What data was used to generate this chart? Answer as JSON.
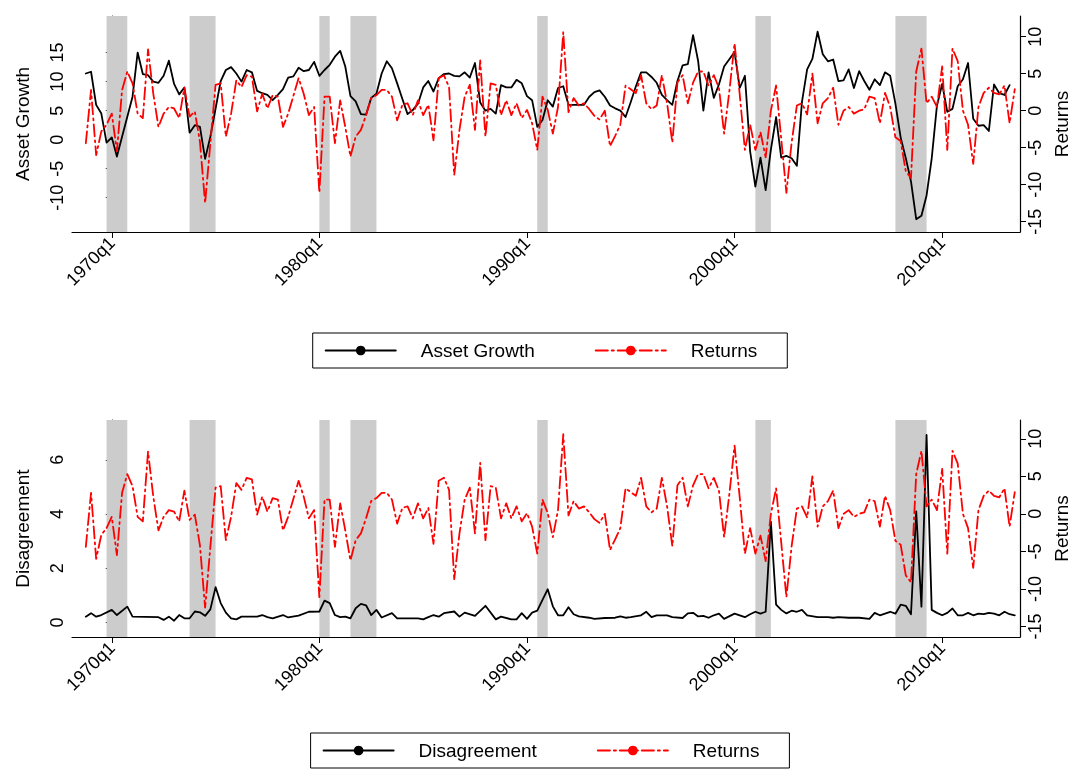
{
  "chart_data": [
    {
      "type": "line",
      "ylabel": "Asset Growth",
      "y2label": "Returns",
      "xlim": [
        "1968-02",
        "2013-10"
      ],
      "xticks": [
        {
          "value": "1970-01",
          "label": "1970q1"
        },
        {
          "value": "1980-01",
          "label": "1980q1"
        },
        {
          "value": "1990-01",
          "label": "1990q1"
        },
        {
          "value": "2000-01",
          "label": "2000q1"
        },
        {
          "value": "2010-01",
          "label": "2010q1"
        }
      ],
      "ylim": [
        -15.9,
        21.3
      ],
      "yticks": [
        -10,
        -5,
        0,
        5,
        10,
        15
      ],
      "y2lim": [
        -16.4,
        12.8
      ],
      "y2ticks": [
        -15,
        -10,
        -5,
        0,
        5,
        10
      ],
      "legend": "bottom",
      "grid": false,
      "marker": "none",
      "bands": [
        {
          "axis": "x",
          "from": "1969-10",
          "to": "1970-10",
          "color": "#cccccc"
        },
        {
          "axis": "x",
          "from": "1973-10",
          "to": "1975-01",
          "color": "#cccccc"
        },
        {
          "axis": "x",
          "from": "1980-01",
          "to": "1980-07",
          "color": "#cccccc"
        },
        {
          "axis": "x",
          "from": "1981-07",
          "to": "1982-10",
          "color": "#cccccc"
        },
        {
          "axis": "x",
          "from": "1990-07",
          "to": "1991-01",
          "color": "#cccccc"
        },
        {
          "axis": "x",
          "from": "2001-01",
          "to": "2001-10",
          "color": "#cccccc"
        },
        {
          "axis": "x",
          "from": "2007-10",
          "to": "2009-04",
          "color": "#cccccc"
        }
      ],
      "series": [
        {
          "name": "Asset Growth",
          "color": "#000000",
          "line_style": "solid",
          "x": [
            "1968-10",
            "1969-01",
            "1969-04",
            "1969-07",
            "1969-10",
            "1970-01",
            "1970-04",
            "1971-01",
            "1971-04",
            "1971-07",
            "1971-10",
            "1972-01",
            "1972-04",
            "1972-07",
            "1972-10",
            "1973-01",
            "1973-04",
            "1973-07",
            "1973-10",
            "1974-01",
            "1974-04",
            "1974-07",
            "1974-10",
            "1975-04",
            "1975-07",
            "1975-10",
            "1976-01",
            "1976-04",
            "1976-07",
            "1976-10",
            "1977-01",
            "1977-04",
            "1977-07",
            "1977-10",
            "1978-01",
            "1978-04",
            "1978-07",
            "1978-10",
            "1979-01",
            "1979-04",
            "1979-07",
            "1979-10",
            "1980-01",
            "1980-04",
            "1980-07",
            "1980-10",
            "1981-01",
            "1981-04",
            "1981-07",
            "1981-10",
            "1982-01",
            "1982-04",
            "1982-07",
            "1982-10",
            "1983-01",
            "1983-04",
            "1983-07",
            "1983-10",
            "1984-01",
            "1984-04",
            "1984-07",
            "1984-10",
            "1985-01",
            "1985-04",
            "1985-07",
            "1985-10",
            "1986-01",
            "1986-04",
            "1986-07",
            "1986-10",
            "1987-01",
            "1987-04",
            "1987-07",
            "1987-10",
            "1988-01",
            "1988-04",
            "1988-07",
            "1988-10",
            "1989-01",
            "1989-04",
            "1989-07",
            "1989-10",
            "1990-01",
            "1990-04",
            "1990-07",
            "1990-10",
            "1991-01",
            "1991-04",
            "1991-07",
            "1991-10",
            "1992-01",
            "1992-04",
            "1992-10",
            "1993-01",
            "1993-04",
            "1993-07",
            "1993-10",
            "1994-01",
            "1994-04",
            "1994-07",
            "1994-10",
            "1995-01",
            "1995-04",
            "1995-07",
            "1995-10",
            "1996-01",
            "1996-04",
            "1996-07",
            "1996-10",
            "1997-01",
            "1997-04",
            "1997-07",
            "1997-10",
            "1998-01",
            "1998-04",
            "1998-07",
            "1998-10",
            "1999-01",
            "1999-04",
            "1999-07",
            "2000-01",
            "2000-04",
            "2000-07",
            "2000-10",
            "2001-01",
            "2001-04",
            "2001-07",
            "2001-10",
            "2002-01",
            "2002-04",
            "2002-07",
            "2002-10",
            "2003-01",
            "2003-04",
            "2003-07",
            "2003-10",
            "2004-01",
            "2004-04",
            "2004-07",
            "2004-10",
            "2005-01",
            "2005-04",
            "2005-07",
            "2005-10",
            "2006-01",
            "2006-04",
            "2006-07",
            "2006-10",
            "2007-01",
            "2007-04",
            "2007-07",
            "2007-10",
            "2008-01",
            "2008-04",
            "2008-07",
            "2008-10",
            "2009-01",
            "2009-04",
            "2009-07",
            "2009-10",
            "2010-01",
            "2010-04",
            "2010-07",
            "2010-10",
            "2011-01",
            "2011-04",
            "2011-07",
            "2011-10",
            "2012-01",
            "2012-04",
            "2012-07",
            "2012-10",
            "2013-01",
            "2013-04"
          ],
          "values": [
            11.4,
            11.7,
            6.0,
            4.5,
            -0.5,
            0.4,
            -2.9,
            7.4,
            15.0,
            11.3,
            11.1,
            10.0,
            9.8,
            11.0,
            13.6,
            9.6,
            7.8,
            9.0,
            1.2,
            2.5,
            2.2,
            -3.3,
            0.5,
            10.1,
            12.0,
            12.5,
            11.4,
            10.0,
            12.0,
            11.6,
            8.4,
            8.0,
            7.7,
            6.8,
            7.7,
            8.7,
            10.7,
            10.9,
            12.4,
            11.8,
            12.0,
            13.4,
            11.0,
            12.0,
            12.9,
            14.3,
            15.3,
            12.6,
            7.5,
            6.6,
            4.4,
            4.3,
            7.2,
            7.9,
            11.4,
            13.5,
            12.3,
            9.7,
            7.0,
            4.4,
            5.1,
            6.2,
            9.0,
            10.1,
            8.3,
            10.6,
            11.3,
            11.4,
            11.0,
            10.9,
            11.6,
            10.7,
            13.2,
            6.4,
            5.0,
            5.3,
            4.5,
            9.4,
            9.0,
            9.0,
            10.3,
            9.7,
            7.5,
            6.8,
            2.2,
            3.4,
            6.8,
            5.7,
            8.9,
            9.2,
            6.0,
            6.0,
            6.0,
            7.4,
            8.2,
            8.5,
            7.4,
            5.9,
            5.4,
            5.0,
            3.9,
            6.5,
            9.2,
            11.6,
            11.6,
            10.8,
            9.8,
            7.7,
            6.8,
            6.0,
            10.1,
            12.8,
            13.0,
            18.0,
            13.5,
            5.0,
            11.6,
            7.2,
            9.5,
            12.6,
            15.1,
            8.9,
            11.0,
            -2.0,
            -8.1,
            -3.1,
            -8.7,
            -1.7,
            3.9,
            -3.1,
            -2.8,
            -3.2,
            -4.5,
            6.5,
            12.1,
            13.9,
            18.6,
            14.7,
            13.5,
            13.8,
            10.1,
            10.2,
            12.1,
            8.9,
            11.8,
            10.1,
            8.6,
            10.4,
            9.4,
            11.6,
            11.0,
            6.2,
            0.4,
            -3.2,
            -7.2,
            -13.7,
            -13.1,
            -9.6,
            -3.2,
            5.9,
            9.6,
            4.8,
            5.3,
            9.2,
            10.4,
            13.2,
            3.6,
            2.4,
            2.5,
            1.5,
            9.5,
            8.0,
            7.7,
            9.4
          ]
        },
        {
          "name": "Returns",
          "color": "#ff0000",
          "line_style": "dashed",
          "axis": "y2",
          "x": [
            "1968-10",
            "1969-01",
            "1969-04",
            "1969-07",
            "1969-10",
            "1970-01",
            "1970-04",
            "1970-07",
            "1970-10",
            "1971-01",
            "1971-04",
            "1971-07",
            "1971-10",
            "1972-01",
            "1972-04",
            "1972-07",
            "1972-10",
            "1973-01",
            "1973-04",
            "1973-07",
            "1973-10",
            "1974-01",
            "1974-04",
            "1974-07",
            "1974-10",
            "1975-01",
            "1975-04",
            "1975-07",
            "1975-10",
            "1976-01",
            "1976-04",
            "1976-07",
            "1976-10",
            "1977-01",
            "1977-04",
            "1977-07",
            "1977-10",
            "1978-01",
            "1978-04",
            "1978-07",
            "1979-01",
            "1979-04",
            "1979-07",
            "1979-10",
            "1980-01",
            "1980-04",
            "1980-07",
            "1980-10",
            "1981-01",
            "1981-04",
            "1981-07",
            "1981-10",
            "1982-01",
            "1982-04",
            "1982-07",
            "1982-10",
            "1983-01",
            "1983-04",
            "1983-07",
            "1983-10",
            "1984-01",
            "1984-04",
            "1984-07",
            "1984-10",
            "1985-01",
            "1985-04",
            "1985-07",
            "1985-10",
            "1986-01",
            "1986-04",
            "1986-07",
            "1986-10",
            "1987-01",
            "1987-04",
            "1987-07",
            "1987-10",
            "1988-01",
            "1988-04",
            "1988-07",
            "1988-10",
            "1989-01",
            "1989-04",
            "1989-07",
            "1989-10",
            "1990-01",
            "1990-04",
            "1990-07",
            "1990-10",
            "1991-01",
            "1991-04",
            "1991-07",
            "1991-10",
            "1992-01",
            "1992-04",
            "1992-07",
            "1992-10",
            "1993-01",
            "1993-04",
            "1993-07",
            "1993-10",
            "1994-01",
            "1994-04",
            "1994-07",
            "1994-10",
            "1995-04",
            "1995-07",
            "1995-10",
            "1996-01",
            "1996-04",
            "1996-07",
            "1996-10",
            "1997-01",
            "1997-04",
            "1997-07",
            "1997-10",
            "1998-01",
            "1998-04",
            "1998-07",
            "1998-10",
            "1999-01",
            "1999-04",
            "1999-07",
            "1999-10",
            "2000-01",
            "2000-04",
            "2000-07",
            "2000-10",
            "2001-01",
            "2001-04",
            "2001-07",
            "2001-10",
            "2002-01",
            "2002-04",
            "2002-07",
            "2002-10",
            "2003-01",
            "2003-04",
            "2003-07",
            "2003-10",
            "2004-01",
            "2004-04",
            "2004-07",
            "2004-10",
            "2005-01",
            "2005-04",
            "2005-07",
            "2005-10",
            "2006-01",
            "2006-04",
            "2006-07",
            "2006-10",
            "2007-01",
            "2007-04",
            "2007-07",
            "2007-10",
            "2008-01",
            "2008-04",
            "2008-07",
            "2008-10",
            "2009-01",
            "2009-04",
            "2009-07",
            "2009-10",
            "2010-01",
            "2010-04",
            "2010-07",
            "2010-10",
            "2011-01",
            "2011-04",
            "2011-07",
            "2011-10",
            "2012-01",
            "2012-04",
            "2012-07",
            "2012-10",
            "2013-01",
            "2013-04",
            "2013-07"
          ],
          "values": [
            -4.4,
            2.8,
            -6.0,
            -2.8,
            -1.9,
            -0.4,
            -5.5,
            2.8,
            5.3,
            3.7,
            -0.4,
            -1.0,
            8.3,
            2.3,
            -2.2,
            -0.4,
            0.5,
            0.3,
            -1.0,
            3.1,
            -0.8,
            -0.1,
            -4.2,
            -12.5,
            -4.4,
            3.5,
            3.7,
            -3.5,
            -0.4,
            4.1,
            3.2,
            4.8,
            4.6,
            -0.1,
            2.3,
            0.3,
            2.1,
            1.9,
            -2.2,
            -0.4,
            4.4,
            2.3,
            -0.6,
            0.5,
            -11.1,
            1.9,
            1.9,
            -4.4,
            1.4,
            -2.2,
            -6.2,
            -3.5,
            -2.6,
            -0.6,
            1.7,
            2.1,
            2.8,
            2.8,
            1.9,
            -1.3,
            0.8,
            1.0,
            -0.6,
            1.4,
            -0.6,
            0.8,
            -4.0,
            4.4,
            4.8,
            3.2,
            -8.7,
            -2.6,
            1.9,
            3.5,
            -2.6,
            6.8,
            -3.5,
            3.7,
            3.5,
            -0.6,
            1.4,
            -0.6,
            1.0,
            -1.0,
            0.1,
            -1.7,
            -5.3,
            1.9,
            0.1,
            -3.1,
            0.5,
            10.6,
            -0.2,
            1.7,
            0.7,
            1.0,
            0.2,
            -0.7,
            -1.2,
            0.0,
            -4.8,
            -3.4,
            -1.9,
            3.4,
            2.4,
            4.8,
            1.0,
            0.2,
            0.7,
            4.8,
            1.0,
            -4.3,
            3.8,
            4.8,
            1.0,
            3.8,
            5.3,
            5.3,
            3.4,
            4.8,
            3.1,
            -3.1,
            2.6,
            9.1,
            2.2,
            -5.3,
            -1.9,
            -5.3,
            -2.9,
            -6.3,
            0.0,
            3.4,
            -3.8,
            -11.1,
            -4.3,
            0.7,
            1.0,
            -0.5,
            5.0,
            -1.7,
            1.0,
            1.7,
            3.1,
            -1.9,
            0.0,
            0.5,
            -0.4,
            0.0,
            0.2,
            1.9,
            1.7,
            -1.7,
            2.4,
            0.5,
            -3.6,
            -4.1,
            -8.2,
            -9.1,
            5.3,
            8.4,
            1.0,
            1.9,
            0.5,
            6.0,
            -5.3,
            8.4,
            6.7,
            0.0,
            -1.9,
            -7.2,
            0.5,
            2.4,
            3.1,
            2.4,
            2.2,
            3.4,
            -1.7,
            2.9
          ]
        }
      ]
    },
    {
      "type": "line",
      "ylabel": "Disagreement",
      "y2label": "Returns",
      "xlim": [
        "1968-02",
        "2013-10"
      ],
      "xticks": [
        {
          "value": "1970-01",
          "label": "1970q1"
        },
        {
          "value": "1980-01",
          "label": "1980q1"
        },
        {
          "value": "1990-01",
          "label": "1990q1"
        },
        {
          "value": "2000-01",
          "label": "2000q1"
        },
        {
          "value": "2010-01",
          "label": "2010q1"
        }
      ],
      "ylim": [
        -0.53,
        7.47
      ],
      "yticks": [
        0,
        2,
        4,
        6
      ],
      "y2lim": [
        -16.4,
        12.5
      ],
      "y2ticks": [
        -15,
        -10,
        -5,
        0,
        5,
        10
      ],
      "legend": "bottom",
      "grid": false,
      "marker": "none",
      "bands": [
        {
          "axis": "x",
          "from": "1969-10",
          "to": "1970-10",
          "color": "#cccccc"
        },
        {
          "axis": "x",
          "from": "1973-10",
          "to": "1975-01",
          "color": "#cccccc"
        },
        {
          "axis": "x",
          "from": "1980-01",
          "to": "1980-07",
          "color": "#cccccc"
        },
        {
          "axis": "x",
          "from": "1981-07",
          "to": "1982-10",
          "color": "#cccccc"
        },
        {
          "axis": "x",
          "from": "1990-07",
          "to": "1991-01",
          "color": "#cccccc"
        },
        {
          "axis": "x",
          "from": "2001-01",
          "to": "2001-10",
          "color": "#cccccc"
        },
        {
          "axis": "x",
          "from": "2007-10",
          "to": "2009-04",
          "color": "#cccccc"
        }
      ],
      "series": [
        {
          "name": "Disagreement",
          "color": "#000000",
          "line_style": "solid",
          "x": [
            "1968-10",
            "1969-01",
            "1969-04",
            "1969-07",
            "1970-01",
            "1970-04",
            "1970-10",
            "1971-01",
            "1972-04",
            "1972-07",
            "1972-10",
            "1973-01",
            "1973-04",
            "1973-07",
            "1973-10",
            "1974-01",
            "1974-04",
            "1974-07",
            "1974-10",
            "1975-01",
            "1975-04",
            "1975-07",
            "1975-10",
            "1976-01",
            "1976-04",
            "1977-01",
            "1977-04",
            "1977-07",
            "1977-10",
            "1978-04",
            "1978-07",
            "1979-01",
            "1979-07",
            "1980-01",
            "1980-04",
            "1980-07",
            "1980-10",
            "1981-01",
            "1981-04",
            "1981-07",
            "1981-10",
            "1982-01",
            "1982-04",
            "1982-07",
            "1982-10",
            "1983-01",
            "1983-07",
            "1983-10",
            "1984-04",
            "1984-10",
            "1985-01",
            "1985-04",
            "1985-07",
            "1985-10",
            "1986-01",
            "1986-07",
            "1986-10",
            "1987-01",
            "1987-07",
            "1988-01",
            "1988-07",
            "1988-10",
            "1989-04",
            "1989-07",
            "1989-10",
            "1990-01",
            "1990-04",
            "1990-07",
            "1990-10",
            "1991-01",
            "1991-04",
            "1991-07",
            "1991-10",
            "1992-01",
            "1992-04",
            "1992-07",
            "1993-01",
            "1993-04",
            "1993-10",
            "1994-04",
            "1994-07",
            "1994-10",
            "1995-01",
            "1995-07",
            "1995-10",
            "1996-01",
            "1996-04",
            "1996-10",
            "1997-01",
            "1997-07",
            "1997-10",
            "1998-01",
            "1998-04",
            "1998-07",
            "1998-10",
            "1999-01",
            "1999-04",
            "1999-07",
            "2000-01",
            "2000-04",
            "2000-07",
            "2000-10",
            "2001-01",
            "2001-04",
            "2001-07",
            "2001-10",
            "2002-01",
            "2002-04",
            "2002-07",
            "2002-10",
            "2003-01",
            "2003-04",
            "2003-07",
            "2004-01",
            "2004-07",
            "2004-10",
            "2005-01",
            "2005-07",
            "2006-01",
            "2006-07",
            "2006-10",
            "2007-01",
            "2007-07",
            "2007-10",
            "2008-01",
            "2008-04",
            "2008-07",
            "2008-10",
            "2009-01",
            "2009-04",
            "2009-07",
            "2009-10",
            "2010-01",
            "2010-04",
            "2010-07",
            "2010-10",
            "2011-01",
            "2011-04",
            "2011-07",
            "2011-10",
            "2012-01",
            "2012-04",
            "2012-07",
            "2012-10",
            "2013-01",
            "2013-04",
            "2013-07"
          ],
          "values": [
            0.22,
            0.35,
            0.22,
            0.28,
            0.47,
            0.28,
            0.59,
            0.22,
            0.2,
            0.1,
            0.22,
            0.07,
            0.28,
            0.16,
            0.16,
            0.41,
            0.38,
            0.25,
            0.49,
            1.31,
            0.72,
            0.37,
            0.16,
            0.12,
            0.22,
            0.22,
            0.28,
            0.2,
            0.16,
            0.28,
            0.19,
            0.26,
            0.4,
            0.41,
            0.81,
            0.72,
            0.28,
            0.2,
            0.22,
            0.16,
            0.53,
            0.69,
            0.64,
            0.28,
            0.47,
            0.19,
            0.35,
            0.16,
            0.16,
            0.16,
            0.12,
            0.2,
            0.28,
            0.22,
            0.35,
            0.41,
            0.22,
            0.37,
            0.25,
            0.62,
            0.12,
            0.22,
            0.12,
            0.12,
            0.35,
            0.14,
            0.37,
            0.44,
            0.84,
            1.23,
            0.6,
            0.27,
            0.27,
            0.57,
            0.31,
            0.23,
            0.18,
            0.14,
            0.17,
            0.18,
            0.23,
            0.18,
            0.2,
            0.27,
            0.4,
            0.2,
            0.27,
            0.27,
            0.2,
            0.17,
            0.34,
            0.36,
            0.23,
            0.25,
            0.18,
            0.27,
            0.33,
            0.14,
            0.33,
            0.27,
            0.2,
            0.31,
            0.4,
            0.33,
            0.4,
            3.72,
            0.66,
            0.47,
            0.34,
            0.44,
            0.4,
            0.47,
            0.27,
            0.2,
            0.2,
            0.18,
            0.2,
            0.18,
            0.18,
            0.14,
            0.36,
            0.27,
            0.4,
            0.33,
            0.66,
            0.62,
            0.31,
            4.1,
            0.59,
            6.92,
            0.47,
            0.36,
            0.27,
            0.36,
            0.52,
            0.27,
            0.27,
            0.36,
            0.27,
            0.33,
            0.31,
            0.36,
            0.33,
            0.27,
            0.4,
            0.31,
            0.27
          ]
        },
        {
          "name": "Returns",
          "color": "#ff0000",
          "line_style": "dashed",
          "axis": "y2",
          "x": [
            "1968-10",
            "1969-01",
            "1969-04",
            "1969-07",
            "1969-10",
            "1970-01",
            "1970-04",
            "1970-07",
            "1970-10",
            "1971-01",
            "1971-04",
            "1971-07",
            "1971-10",
            "1972-01",
            "1972-04",
            "1972-07",
            "1972-10",
            "1973-01",
            "1973-04",
            "1973-07",
            "1973-10",
            "1974-01",
            "1974-04",
            "1974-07",
            "1974-10",
            "1975-01",
            "1975-04",
            "1975-07",
            "1975-10",
            "1976-01",
            "1976-04",
            "1976-07",
            "1976-10",
            "1977-01",
            "1977-04",
            "1977-07",
            "1977-10",
            "1978-01",
            "1978-04",
            "1978-07",
            "1979-01",
            "1979-04",
            "1979-07",
            "1979-10",
            "1980-01",
            "1980-04",
            "1980-07",
            "1980-10",
            "1981-01",
            "1981-04",
            "1981-07",
            "1981-10",
            "1982-01",
            "1982-04",
            "1982-07",
            "1982-10",
            "1983-01",
            "1983-04",
            "1983-07",
            "1983-10",
            "1984-01",
            "1984-04",
            "1984-07",
            "1984-10",
            "1985-01",
            "1985-04",
            "1985-07",
            "1985-10",
            "1986-01",
            "1986-04",
            "1986-07",
            "1986-10",
            "1987-01",
            "1987-04",
            "1987-07",
            "1987-10",
            "1988-01",
            "1988-04",
            "1988-07",
            "1988-10",
            "1989-01",
            "1989-04",
            "1989-07",
            "1989-10",
            "1990-01",
            "1990-04",
            "1990-07",
            "1990-10",
            "1991-01",
            "1991-04",
            "1991-07",
            "1991-10",
            "1992-01",
            "1992-04",
            "1992-07",
            "1992-10",
            "1993-01",
            "1993-04",
            "1993-07",
            "1993-10",
            "1994-01",
            "1994-04",
            "1994-07",
            "1994-10",
            "1995-04",
            "1995-07",
            "1995-10",
            "1996-01",
            "1996-04",
            "1996-07",
            "1996-10",
            "1997-01",
            "1997-04",
            "1997-07",
            "1997-10",
            "1998-01",
            "1998-04",
            "1998-07",
            "1998-10",
            "1999-01",
            "1999-04",
            "1999-07",
            "1999-10",
            "2000-01",
            "2000-04",
            "2000-07",
            "2000-10",
            "2001-01",
            "2001-04",
            "2001-07",
            "2001-10",
            "2002-01",
            "2002-04",
            "2002-07",
            "2002-10",
            "2003-01",
            "2003-04",
            "2003-07",
            "2003-10",
            "2004-01",
            "2004-04",
            "2004-07",
            "2004-10",
            "2005-01",
            "2005-04",
            "2005-07",
            "2005-10",
            "2006-01",
            "2006-04",
            "2006-07",
            "2006-10",
            "2007-01",
            "2007-04",
            "2007-07",
            "2007-10",
            "2008-01",
            "2008-04",
            "2008-07",
            "2008-10",
            "2009-01",
            "2009-04",
            "2009-07",
            "2009-10",
            "2010-01",
            "2010-04",
            "2010-07",
            "2010-10",
            "2011-01",
            "2011-04",
            "2011-07",
            "2011-10",
            "2012-01",
            "2012-04",
            "2012-07",
            "2012-10",
            "2013-01",
            "2013-04",
            "2013-07"
          ],
          "values": [
            -4.4,
            2.8,
            -6.0,
            -2.8,
            -1.9,
            -0.4,
            -5.5,
            2.8,
            5.3,
            3.7,
            -0.4,
            -1.0,
            8.3,
            2.3,
            -2.2,
            -0.4,
            0.5,
            0.3,
            -1.0,
            3.1,
            -0.8,
            -0.1,
            -4.2,
            -12.5,
            -4.4,
            3.5,
            3.7,
            -3.5,
            -0.4,
            4.1,
            3.2,
            4.8,
            4.6,
            -0.1,
            2.3,
            0.3,
            2.1,
            1.9,
            -2.2,
            -0.4,
            4.4,
            2.3,
            -0.6,
            0.5,
            -11.1,
            1.9,
            1.9,
            -4.4,
            1.4,
            -2.2,
            -6.2,
            -3.5,
            -2.6,
            -0.6,
            1.7,
            2.1,
            2.8,
            2.8,
            1.9,
            -1.3,
            0.8,
            1.0,
            -0.6,
            1.4,
            -0.6,
            0.8,
            -4.0,
            4.4,
            4.8,
            3.2,
            -8.7,
            -2.6,
            1.9,
            3.5,
            -2.6,
            6.8,
            -3.5,
            3.7,
            3.5,
            -0.6,
            1.4,
            -0.6,
            1.0,
            -1.0,
            0.1,
            -1.7,
            -5.3,
            1.9,
            0.1,
            -3.1,
            0.5,
            10.6,
            -0.2,
            1.7,
            0.7,
            1.0,
            0.2,
            -0.7,
            -1.2,
            0.0,
            -4.8,
            -3.4,
            -1.9,
            3.4,
            2.4,
            4.8,
            1.0,
            0.2,
            0.7,
            4.8,
            1.0,
            -4.3,
            3.8,
            4.8,
            1.0,
            3.8,
            5.3,
            5.3,
            3.4,
            4.8,
            3.1,
            -3.1,
            2.6,
            9.1,
            2.2,
            -5.3,
            -1.9,
            -5.3,
            -2.9,
            -6.3,
            0.0,
            3.4,
            -3.8,
            -11.1,
            -4.3,
            0.7,
            1.0,
            -0.5,
            5.0,
            -1.7,
            1.0,
            1.7,
            3.1,
            -1.9,
            0.0,
            0.5,
            -0.4,
            0.0,
            0.2,
            1.9,
            1.7,
            -1.7,
            2.4,
            0.5,
            -3.6,
            -4.1,
            -8.2,
            -9.1,
            5.3,
            8.4,
            1.0,
            1.9,
            0.5,
            6.0,
            -5.3,
            8.4,
            6.7,
            0.0,
            -1.9,
            -7.2,
            0.5,
            2.4,
            3.1,
            2.4,
            2.2,
            3.4,
            -1.7,
            2.9
          ]
        }
      ]
    }
  ]
}
